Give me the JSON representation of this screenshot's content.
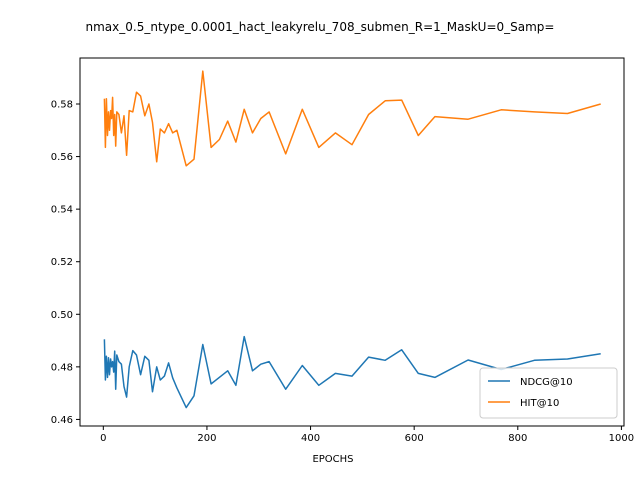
{
  "chart_data": {
    "type": "line",
    "title": "nmax_0.5_ntype_0.0001_hact_leakyrelu_708_submen_R=1_MaskU=0_Samp=",
    "xlabel": "EPOCHS",
    "ylabel": "",
    "xlim": [
      -45,
      1005
    ],
    "ylim": [
      0.4575,
      0.5975
    ],
    "xticks": [
      0,
      200,
      400,
      600,
      800,
      1000
    ],
    "yticks": [
      0.46,
      0.48,
      0.5,
      0.52,
      0.54,
      0.56,
      0.58
    ],
    "ytick_labels": [
      "0.46",
      "0.48",
      "0.50",
      "0.52",
      "0.54",
      "0.56",
      "0.58"
    ],
    "grid": false,
    "legend_position": "lower right",
    "series": [
      {
        "name": "NDCG@10",
        "color": "#1f77b4",
        "x": [
          2,
          4,
          6,
          8,
          10,
          12,
          14,
          16,
          18,
          20,
          22,
          24,
          26,
          30,
          35,
          40,
          45,
          50,
          57,
          64,
          72,
          80,
          88,
          95,
          103,
          110,
          118,
          126,
          134,
          142,
          160,
          175,
          192,
          208,
          240,
          256,
          272,
          288,
          304,
          320,
          352,
          384,
          416,
          448,
          480,
          512,
          544,
          576,
          608,
          640,
          704,
          768,
          832,
          896,
          960
        ],
        "y": [
          0.4905,
          0.475,
          0.484,
          0.476,
          0.4835,
          0.477,
          0.483,
          0.48,
          0.482,
          0.478,
          0.486,
          0.4715,
          0.4845,
          0.482,
          0.481,
          0.4725,
          0.4685,
          0.48,
          0.4862,
          0.4845,
          0.477,
          0.484,
          0.4825,
          0.4705,
          0.48,
          0.475,
          0.4765,
          0.4815,
          0.4758,
          0.472,
          0.4645,
          0.469,
          0.4885,
          0.4735,
          0.4785,
          0.473,
          0.4915,
          0.4785,
          0.481,
          0.482,
          0.4715,
          0.4805,
          0.473,
          0.4775,
          0.4765,
          0.4837,
          0.4825,
          0.4865,
          0.4775,
          0.476,
          0.4826,
          0.479,
          0.4825,
          0.483,
          0.485
        ]
      },
      {
        "name": "HIT@10",
        "color": "#ff7f0e",
        "x": [
          2,
          4,
          6,
          8,
          10,
          12,
          14,
          16,
          18,
          20,
          22,
          24,
          26,
          30,
          35,
          40,
          45,
          50,
          57,
          64,
          72,
          80,
          88,
          95,
          103,
          110,
          118,
          126,
          134,
          142,
          160,
          175,
          192,
          208,
          224,
          240,
          256,
          272,
          288,
          304,
          320,
          352,
          384,
          416,
          448,
          480,
          512,
          544,
          576,
          608,
          640,
          704,
          768,
          832,
          896,
          960
        ],
        "y": [
          0.582,
          0.5635,
          0.582,
          0.568,
          0.577,
          0.57,
          0.5775,
          0.5745,
          0.5825,
          0.568,
          0.576,
          0.564,
          0.577,
          0.576,
          0.569,
          0.5755,
          0.5605,
          0.5775,
          0.577,
          0.5845,
          0.583,
          0.5755,
          0.58,
          0.573,
          0.558,
          0.5705,
          0.569,
          0.5725,
          0.569,
          0.57,
          0.5565,
          0.559,
          0.5925,
          0.5635,
          0.5665,
          0.5735,
          0.5655,
          0.578,
          0.569,
          0.5745,
          0.577,
          0.561,
          0.578,
          0.5635,
          0.569,
          0.5645,
          0.576,
          0.5812,
          0.5815,
          0.568,
          0.5752,
          0.5742,
          0.5778,
          0.577,
          0.5764,
          0.58
        ]
      }
    ]
  }
}
